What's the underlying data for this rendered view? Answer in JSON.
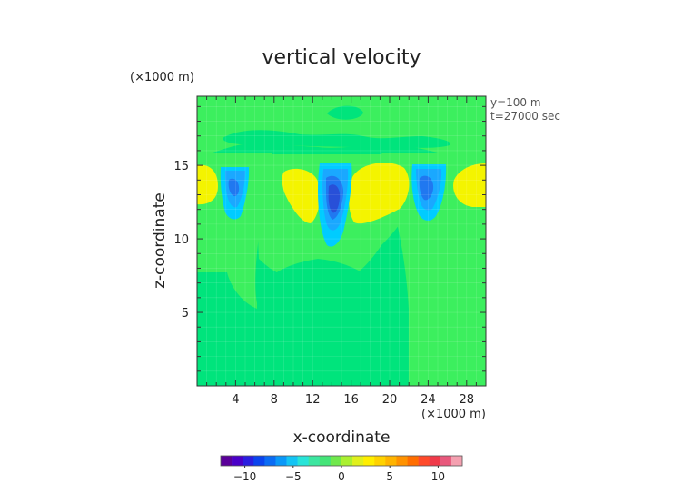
{
  "chart_data": {
    "type": "heatmap",
    "title": "vertical velocity",
    "xlabel": "x-coordinate",
    "ylabel": "z-coordinate",
    "x_unit": "(×1000 m)",
    "y_unit": "(×1000 m)",
    "annotations": [
      "y=100 m",
      "t=27000 sec"
    ],
    "x_ticks": [
      4,
      8,
      12,
      16,
      20,
      24,
      28
    ],
    "y_ticks": [
      5,
      10,
      15
    ],
    "xlim": [
      0,
      30
    ],
    "ylim": [
      0,
      19.7
    ],
    "grid": true,
    "colorbar": {
      "ticks": [
        -10,
        -5,
        0,
        5,
        10
      ],
      "range": [
        -12.5,
        12.5
      ],
      "colors": [
        "#5a0099",
        "#4a00c8",
        "#2a1ee0",
        "#0a44ee",
        "#0a6cf4",
        "#0a98f8",
        "#14c4f4",
        "#28e4d8",
        "#3ce6a0",
        "#44e478",
        "#70e84c",
        "#aaf030",
        "#e0f01c",
        "#ffee00",
        "#ffd200",
        "#ffb400",
        "#ff9200",
        "#ff6e00",
        "#ff4a2a",
        "#f03a4a",
        "#e8587c",
        "#f4a0b0"
      ]
    },
    "levels": {
      "base": "#00e47c",
      "light_green": "#3cef5e",
      "yellow": "#f4f400",
      "cyan": "#00ccff",
      "light_blue": "#1aa8ff",
      "mid_blue": "#2078f0",
      "dark_blue": "#2850d8"
    },
    "features": [
      {
        "kind": "updraft",
        "x": 2,
        "z": 13.5,
        "level": "yellow"
      },
      {
        "kind": "updraft",
        "x": 10.5,
        "z": 13.0,
        "level": "yellow"
      },
      {
        "kind": "updraft",
        "x": 19.5,
        "z": 13.0,
        "level": "yellow"
      },
      {
        "kind": "updraft",
        "x": 28.5,
        "z": 14.0,
        "level": "yellow"
      },
      {
        "kind": "downdraft",
        "x": 4,
        "z": 13.5,
        "min_level": "mid_blue"
      },
      {
        "kind": "downdraft",
        "x": 14.5,
        "z": 12.0,
        "min_level": "dark_blue"
      },
      {
        "kind": "downdraft",
        "x": 23.5,
        "z": 13.5,
        "min_level": "mid_blue"
      }
    ]
  }
}
